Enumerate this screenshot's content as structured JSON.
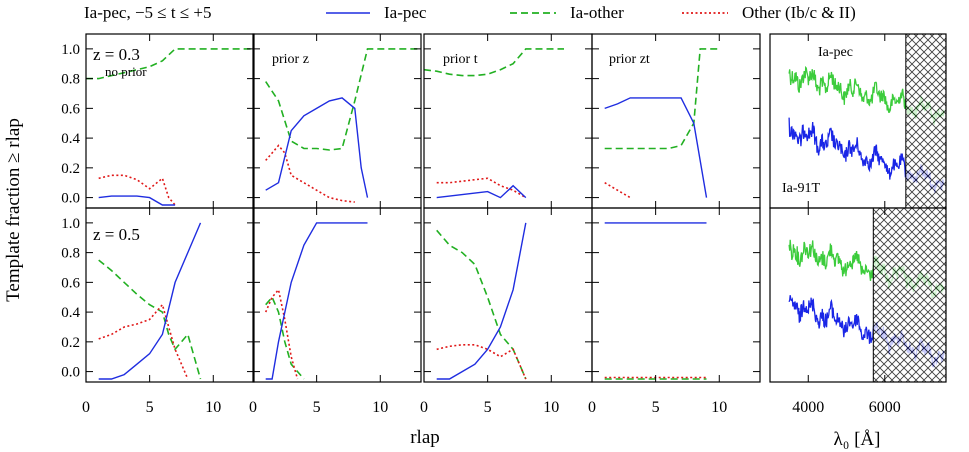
{
  "chart_data": {
    "type": "line",
    "figure_title": "Ia-pec, −5 ≤ t ≤ +5",
    "ylabel": "Template fraction ≥ rlap",
    "xlabel": "rlap",
    "legend": [
      {
        "name": "Ia-pec",
        "color": "#1f2de0",
        "style": "solid"
      },
      {
        "name": "Ia-other",
        "color": "#22b022",
        "style": "dashed"
      },
      {
        "name": "Other (Ib/c & II)",
        "color": "#e01818",
        "style": "dotted"
      }
    ],
    "xlim": [
      0,
      13.2
    ],
    "ylim": [
      -0.07,
      1.1
    ],
    "xticks": [
      0,
      5,
      10
    ],
    "yticks": [
      0.0,
      0.2,
      0.4,
      0.6,
      0.8,
      1.0
    ],
    "ytick_labels": [
      "0.0",
      "0.2",
      "0.4",
      "0.6",
      "0.8",
      "1.0"
    ],
    "xtick_labels": [
      "0",
      "5",
      "10"
    ],
    "row_labels": [
      "z = 0.3",
      "z = 0.5"
    ],
    "column_labels": [
      "no prior",
      "prior z",
      "prior t",
      "prior zt"
    ],
    "panels": [
      {
        "id": "r0c0",
        "iapec": {
          "x": [
            1,
            2,
            3,
            4,
            5,
            6,
            7
          ],
          "y": [
            0.0,
            0.01,
            0.01,
            0.01,
            0.0,
            -0.05,
            -0.05
          ]
        },
        "iaother": {
          "x": [
            0,
            1,
            2,
            3,
            4,
            5,
            6,
            7,
            8,
            9,
            10,
            11,
            12,
            13
          ],
          "y": [
            0.8,
            0.8,
            0.82,
            0.84,
            0.86,
            0.88,
            0.92,
            1.0,
            1.0,
            1.0,
            1.0,
            1.0,
            1.0,
            1.0
          ]
        },
        "other": {
          "x": [
            1,
            2,
            3,
            4,
            5,
            6,
            6.5,
            7
          ],
          "y": [
            0.13,
            0.15,
            0.15,
            0.12,
            0.06,
            0.13,
            0.0,
            -0.05
          ]
        }
      },
      {
        "id": "r0c1",
        "iapec": {
          "x": [
            1,
            2,
            3,
            4,
            5,
            6,
            7,
            8,
            8.5,
            9
          ],
          "y": [
            0.05,
            0.1,
            0.45,
            0.55,
            0.6,
            0.65,
            0.67,
            0.6,
            0.2,
            0.0
          ]
        },
        "iaother": {
          "x": [
            1,
            2,
            3,
            4,
            5,
            6,
            7,
            8,
            9,
            10,
            11,
            12,
            13
          ],
          "y": [
            0.78,
            0.65,
            0.38,
            0.33,
            0.33,
            0.32,
            0.33,
            0.65,
            1.0,
            1.0,
            1.0,
            1.0,
            1.0
          ]
        },
        "other": {
          "x": [
            1,
            1.5,
            2,
            2.5,
            3,
            4,
            5,
            6,
            7,
            8
          ],
          "y": [
            0.25,
            0.3,
            0.35,
            0.3,
            0.15,
            0.1,
            0.05,
            0.0,
            -0.02,
            -0.03
          ]
        }
      },
      {
        "id": "r0c2",
        "iapec": {
          "x": [
            1,
            2,
            3,
            4,
            5,
            6,
            7,
            8
          ],
          "y": [
            0.0,
            0.01,
            0.02,
            0.03,
            0.04,
            0.0,
            0.08,
            0.0
          ]
        },
        "iaother": {
          "x": [
            0,
            1,
            2,
            3,
            4,
            5,
            6,
            7,
            8,
            9,
            10,
            11
          ],
          "y": [
            0.86,
            0.85,
            0.83,
            0.82,
            0.82,
            0.83,
            0.86,
            0.9,
            1.0,
            1.0,
            1.0,
            1.0
          ]
        },
        "other": {
          "x": [
            1,
            2,
            3,
            4,
            5,
            6,
            7,
            8
          ],
          "y": [
            0.1,
            0.1,
            0.11,
            0.12,
            0.13,
            0.08,
            0.05,
            0.0
          ]
        }
      },
      {
        "id": "r0c3",
        "iapec": {
          "x": [
            1,
            2,
            3,
            4,
            5,
            6,
            7,
            8,
            9
          ],
          "y": [
            0.6,
            0.63,
            0.67,
            0.67,
            0.67,
            0.67,
            0.67,
            0.5,
            0.0
          ]
        },
        "iaother": {
          "x": [
            1,
            2,
            3,
            4,
            5,
            6,
            7,
            8,
            8.5,
            9,
            10
          ],
          "y": [
            0.33,
            0.33,
            0.33,
            0.33,
            0.33,
            0.33,
            0.35,
            0.5,
            1.0,
            1.0,
            1.0
          ]
        },
        "other": {
          "x": [
            1,
            2,
            3
          ],
          "y": [
            0.1,
            0.05,
            0.0
          ]
        }
      },
      {
        "id": "r1c0",
        "iapec": {
          "x": [
            1,
            2,
            3,
            4,
            5,
            6,
            7,
            8,
            9
          ],
          "y": [
            -0.05,
            -0.05,
            -0.02,
            0.05,
            0.12,
            0.25,
            0.6,
            0.8,
            1.0
          ]
        },
        "iaother": {
          "x": [
            1,
            2,
            3,
            4,
            5,
            6,
            6.5,
            7,
            8,
            9
          ],
          "y": [
            0.75,
            0.68,
            0.6,
            0.52,
            0.45,
            0.4,
            0.25,
            0.15,
            0.25,
            -0.05
          ]
        },
        "other": {
          "x": [
            1,
            2,
            3,
            4,
            5,
            6,
            6.5,
            7,
            7.5,
            8
          ],
          "y": [
            0.22,
            0.25,
            0.3,
            0.32,
            0.35,
            0.45,
            0.3,
            0.15,
            0.05,
            -0.05
          ]
        }
      },
      {
        "id": "r1c1",
        "iapec": {
          "x": [
            1,
            1.5,
            2,
            3,
            4,
            5,
            6,
            7,
            8,
            9
          ],
          "y": [
            -0.05,
            -0.05,
            0.2,
            0.6,
            0.85,
            1.0,
            1.0,
            1.0,
            1.0,
            1.0
          ]
        },
        "iaother": {
          "x": [
            1,
            1.5,
            2,
            2.5,
            3,
            4
          ],
          "y": [
            0.45,
            0.5,
            0.4,
            0.2,
            0.05,
            -0.05
          ]
        },
        "other": {
          "x": [
            1,
            1.5,
            2,
            2.5,
            3,
            3.5
          ],
          "y": [
            0.4,
            0.5,
            0.55,
            0.35,
            0.1,
            -0.05
          ]
        }
      },
      {
        "id": "r1c2",
        "iapec": {
          "x": [
            1,
            2,
            3,
            4,
            5,
            6,
            7,
            8
          ],
          "y": [
            -0.05,
            -0.05,
            0.0,
            0.05,
            0.15,
            0.3,
            0.55,
            1.0
          ]
        },
        "iaother": {
          "x": [
            1,
            2,
            3,
            4,
            5,
            6,
            7,
            7.5,
            8
          ],
          "y": [
            0.95,
            0.85,
            0.8,
            0.72,
            0.5,
            0.25,
            0.15,
            0.05,
            -0.05
          ]
        },
        "other": {
          "x": [
            1,
            2,
            3,
            4,
            5,
            6,
            7,
            7.5,
            8
          ],
          "y": [
            0.15,
            0.17,
            0.18,
            0.18,
            0.15,
            0.1,
            0.15,
            0.05,
            -0.05
          ]
        }
      },
      {
        "id": "r1c3",
        "iapec": {
          "x": [
            1,
            9
          ],
          "y": [
            1.0,
            1.0
          ]
        },
        "iaother": {
          "x": [
            1,
            9
          ],
          "y": [
            -0.05,
            -0.05
          ]
        },
        "other": {
          "x": [
            1,
            9
          ],
          "y": [
            -0.04,
            -0.04
          ]
        }
      }
    ],
    "spectra": {
      "xlabel": "λ₀ [Å]",
      "xlim": [
        3000,
        7600
      ],
      "xticks": [
        4000,
        6000
      ],
      "xtick_labels": [
        "4000",
        "6000"
      ],
      "panels": [
        {
          "label_top": "Ia-pec",
          "label_bottom": "Ia-91T",
          "masked_region": [
            6550,
            7600
          ]
        },
        {
          "label_top": "",
          "label_bottom": "",
          "masked_region": [
            5700,
            7600
          ]
        }
      ]
    }
  }
}
